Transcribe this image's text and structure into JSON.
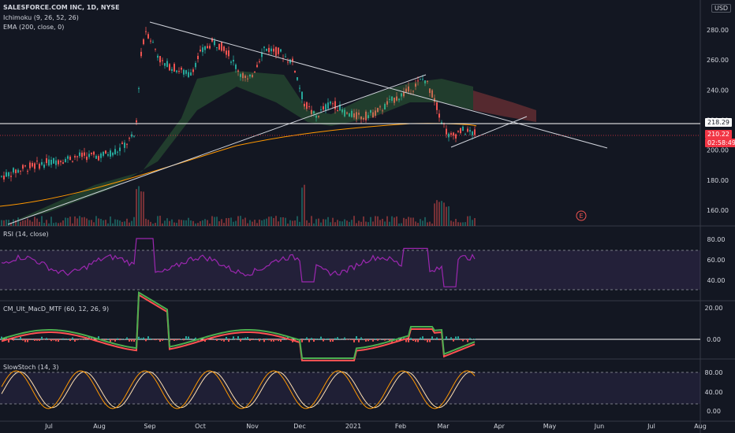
{
  "chart_data": {
    "type": "candlestick",
    "title": "SALESFORCE.COM INC, 1D, NYSE",
    "indicator_labels": [
      "Ichimoku (9, 26, 52, 26)",
      "EMA (200, close, 0)"
    ],
    "currency": "USD",
    "price_axis": {
      "ticks": [
        "280.00",
        "260.00",
        "240.00",
        "220.00",
        "200.00",
        "180.00",
        "160.00"
      ]
    },
    "last_price": "210.22",
    "countdown": "02:58:49",
    "level_line": "218.29",
    "earnings_marker": "E",
    "months": [
      "Jul",
      "Aug",
      "Sep",
      "Oct",
      "Nov",
      "Dec",
      "2021",
      "Feb",
      "Mar",
      "Apr",
      "May",
      "Jun",
      "Jul",
      "Aug"
    ],
    "approx_close_by_month_start": [
      {
        "m": "Jul",
        "v": 190
      },
      {
        "m": "Aug",
        "v": 196
      },
      {
        "m": "Sep",
        "v": 275
      },
      {
        "m": "Oct",
        "v": 262
      },
      {
        "m": "Nov",
        "v": 265
      },
      {
        "m": "Dec",
        "v": 224
      },
      {
        "m": "2021",
        "v": 222
      },
      {
        "m": "Feb",
        "v": 240
      },
      {
        "m": "Mar",
        "v": 218
      }
    ],
    "panels": [
      {
        "name": "RSI (14, close)",
        "ticks": [
          "80.00",
          "60.00",
          "40.00"
        ]
      },
      {
        "name": "CM_Ult_MacD_MTF (60, 12, 26, 9)",
        "ticks": [
          "20.00",
          "0.00"
        ]
      },
      {
        "name": "SlowStoch (14, 3)",
        "ticks": [
          "80.00",
          "40.00",
          "0.00"
        ]
      }
    ]
  },
  "colors": {
    "bg": "#131722",
    "up": "#26a69a",
    "down": "#ef5350",
    "rsi": "#9c27b0",
    "k": "#ff9800",
    "d": "#ffe0b2",
    "ema": "#ff9800",
    "level": "#ffffff",
    "price": "#f23645"
  }
}
